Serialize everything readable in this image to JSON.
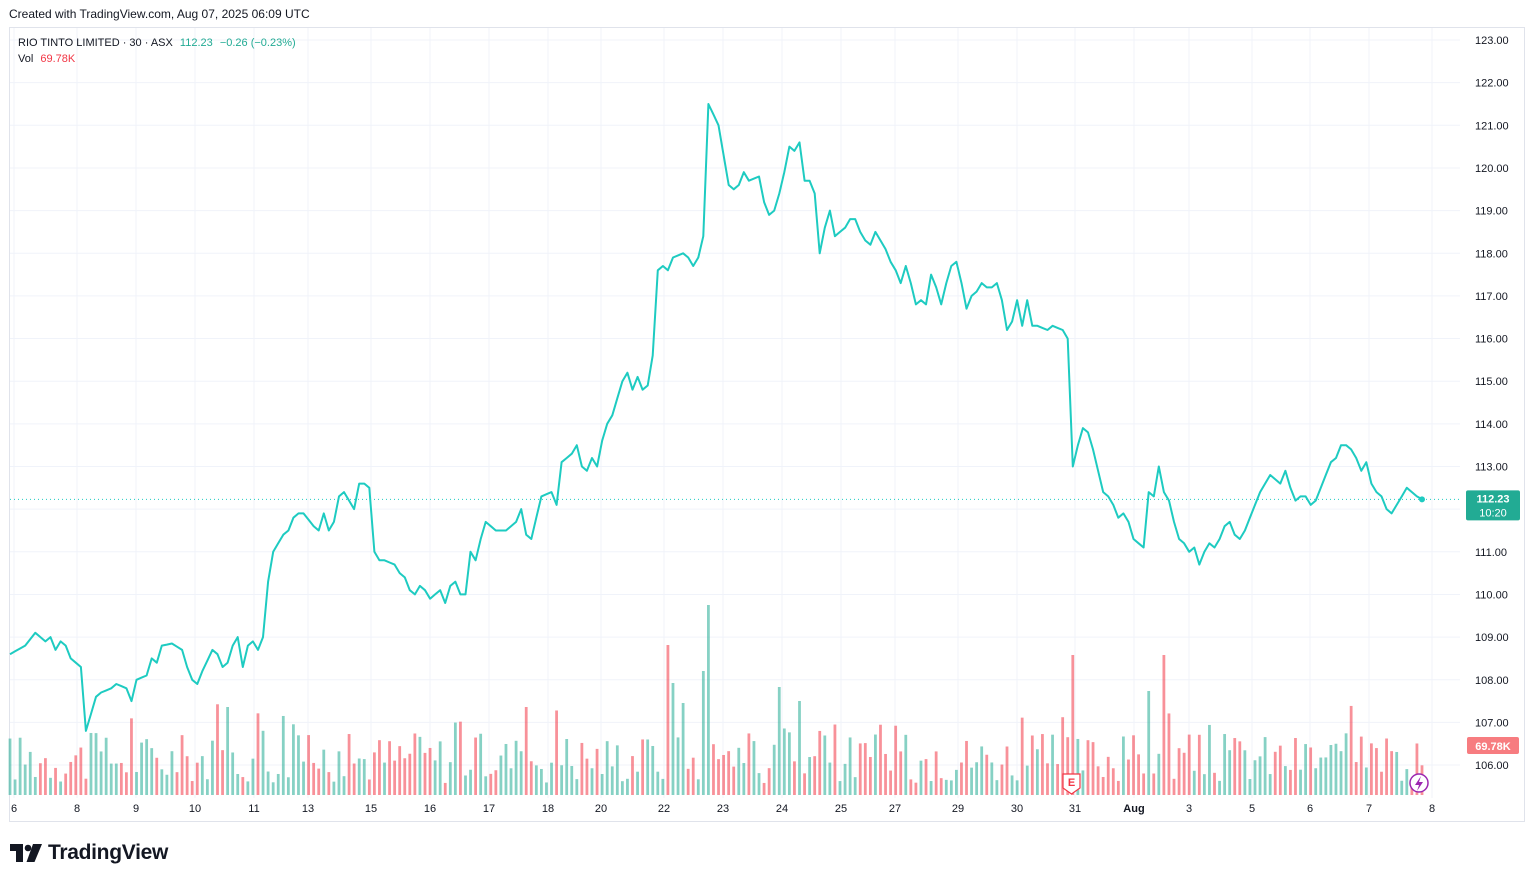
{
  "header": {
    "created_text": "Created with TradingView.com, Aug 07, 2025 06:09 UTC"
  },
  "legend": {
    "symbol": "RIO TINTO LIMITED · 30 · ASX",
    "price": "112.23",
    "change": "−0.26 (−0.23%)",
    "vol_label": "Vol",
    "vol_value": "69.78K"
  },
  "price_badge": {
    "price": "112.23",
    "time": "10:20"
  },
  "volume_badge": "69.78K",
  "earnings_marker": "E",
  "brand": "TradingView",
  "colors": {
    "line": "#1ecbc1",
    "up": "#22ab94",
    "down": "#f23645",
    "grid": "#f0f3fa"
  },
  "icons": [
    "tradingview-logo-icon",
    "lightning-icon"
  ],
  "chart_data": {
    "type": "line",
    "title": "RIO TINTO LIMITED · 30 · ASX",
    "ylim": [
      105,
      123.3
    ],
    "y_ticks": [
      "106.00",
      "107.00",
      "108.00",
      "109.00",
      "110.00",
      "111.00",
      "112.00",
      "113.00",
      "114.00",
      "115.00",
      "116.00",
      "117.00",
      "118.00",
      "119.00",
      "120.00",
      "121.00",
      "122.00",
      "123.00"
    ],
    "x_labels": [
      "6",
      "8",
      "9",
      "10",
      "11",
      "13",
      "15",
      "16",
      "17",
      "18",
      "20",
      "22",
      "23",
      "24",
      "25",
      "27",
      "29",
      "30",
      "31",
      "Aug",
      "3",
      "5",
      "6",
      "7",
      "8"
    ],
    "bold_x_labels": [
      "Aug"
    ],
    "last_price": 112.23,
    "price_anchors": [
      [
        0,
        108.6
      ],
      [
        3,
        108.8
      ],
      [
        5,
        109.1
      ],
      [
        7,
        108.9
      ],
      [
        8,
        109.0
      ],
      [
        9,
        108.7
      ],
      [
        10,
        108.9
      ],
      [
        11,
        108.8
      ],
      [
        12,
        108.5
      ],
      [
        13,
        108.4
      ],
      [
        14,
        108.3
      ],
      [
        15,
        106.8
      ],
      [
        16,
        107.2
      ],
      [
        17,
        107.6
      ],
      [
        18,
        107.7
      ],
      [
        20,
        107.8
      ],
      [
        21,
        107.9
      ],
      [
        23,
        107.8
      ],
      [
        24,
        107.5
      ],
      [
        25,
        108.0
      ],
      [
        27,
        108.1
      ],
      [
        28,
        108.5
      ],
      [
        29,
        108.4
      ],
      [
        30,
        108.8
      ],
      [
        32,
        108.85
      ],
      [
        34,
        108.7
      ],
      [
        35,
        108.3
      ],
      [
        36,
        108.0
      ],
      [
        37,
        107.9
      ],
      [
        38,
        108.2
      ],
      [
        40,
        108.7
      ],
      [
        41,
        108.6
      ],
      [
        42,
        108.3
      ],
      [
        43,
        108.4
      ],
      [
        44,
        108.8
      ],
      [
        45,
        109.0
      ],
      [
        46,
        108.3
      ],
      [
        47,
        108.8
      ],
      [
        48,
        108.9
      ],
      [
        49,
        108.7
      ],
      [
        50,
        109.0
      ],
      [
        51,
        110.3
      ],
      [
        52,
        111.0
      ],
      [
        53,
        111.2
      ],
      [
        54,
        111.4
      ],
      [
        55,
        111.5
      ],
      [
        56,
        111.8
      ],
      [
        57,
        111.9
      ],
      [
        58,
        111.9
      ],
      [
        60,
        111.6
      ],
      [
        61,
        111.5
      ],
      [
        62,
        111.9
      ],
      [
        63,
        111.5
      ],
      [
        64,
        111.7
      ],
      [
        65,
        112.3
      ],
      [
        66,
        112.4
      ],
      [
        67,
        112.2
      ],
      [
        68,
        112.0
      ],
      [
        69,
        112.6
      ],
      [
        70,
        112.6
      ],
      [
        71,
        112.5
      ],
      [
        72,
        111.0
      ],
      [
        73,
        110.8
      ],
      [
        74,
        110.8
      ],
      [
        76,
        110.7
      ],
      [
        77,
        110.5
      ],
      [
        78,
        110.4
      ],
      [
        79,
        110.1
      ],
      [
        80,
        110.0
      ],
      [
        81,
        110.2
      ],
      [
        82,
        110.1
      ],
      [
        83,
        109.9
      ],
      [
        84,
        110.0
      ],
      [
        85,
        110.1
      ],
      [
        86,
        109.8
      ],
      [
        87,
        110.2
      ],
      [
        88,
        110.3
      ],
      [
        89,
        110.0
      ],
      [
        90,
        110.0
      ],
      [
        91,
        111.0
      ],
      [
        92,
        110.8
      ],
      [
        93,
        111.3
      ],
      [
        94,
        111.7
      ],
      [
        95,
        111.6
      ],
      [
        96,
        111.5
      ],
      [
        98,
        111.5
      ],
      [
        99,
        111.6
      ],
      [
        100,
        111.7
      ],
      [
        101,
        112.0
      ],
      [
        102,
        111.4
      ],
      [
        103,
        111.3
      ],
      [
        104,
        111.8
      ],
      [
        105,
        112.3
      ],
      [
        107,
        112.4
      ],
      [
        108,
        112.1
      ],
      [
        109,
        113.1
      ],
      [
        110,
        113.2
      ],
      [
        111,
        113.3
      ],
      [
        112,
        113.5
      ],
      [
        113,
        113.0
      ],
      [
        114,
        112.9
      ],
      [
        115,
        113.2
      ],
      [
        116,
        113.0
      ],
      [
        117,
        113.6
      ],
      [
        118,
        114.0
      ],
      [
        119,
        114.2
      ],
      [
        120,
        114.6
      ],
      [
        121,
        115.0
      ],
      [
        122,
        115.2
      ],
      [
        123,
        114.8
      ],
      [
        124,
        115.1
      ],
      [
        125,
        114.8
      ],
      [
        126,
        114.9
      ],
      [
        127,
        115.6
      ],
      [
        128,
        117.6
      ],
      [
        129,
        117.7
      ],
      [
        130,
        117.6
      ],
      [
        131,
        117.9
      ],
      [
        133,
        118.0
      ],
      [
        134,
        117.9
      ],
      [
        135,
        117.7
      ],
      [
        136,
        117.9
      ],
      [
        137,
        118.4
      ],
      [
        138,
        121.5
      ],
      [
        140,
        121.0
      ],
      [
        141,
        120.3
      ],
      [
        142,
        119.6
      ],
      [
        143,
        119.5
      ],
      [
        144,
        119.6
      ],
      [
        145,
        119.9
      ],
      [
        146,
        119.7
      ],
      [
        148,
        119.8
      ],
      [
        149,
        119.2
      ],
      [
        150,
        118.9
      ],
      [
        151,
        119.0
      ],
      [
        152,
        119.4
      ],
      [
        153,
        119.9
      ],
      [
        154,
        120.5
      ],
      [
        155,
        120.4
      ],
      [
        156,
        120.6
      ],
      [
        157,
        119.7
      ],
      [
        158,
        119.7
      ],
      [
        159,
        119.4
      ],
      [
        160,
        118.0
      ],
      [
        161,
        118.6
      ],
      [
        162,
        119.0
      ],
      [
        163,
        118.4
      ],
      [
        165,
        118.6
      ],
      [
        166,
        118.8
      ],
      [
        167,
        118.8
      ],
      [
        168,
        118.5
      ],
      [
        169,
        118.3
      ],
      [
        170,
        118.2
      ],
      [
        171,
        118.5
      ],
      [
        172,
        118.3
      ],
      [
        173,
        118.1
      ],
      [
        174,
        117.8
      ],
      [
        175,
        117.6
      ],
      [
        176,
        117.3
      ],
      [
        177,
        117.7
      ],
      [
        178,
        117.3
      ],
      [
        179,
        116.8
      ],
      [
        180,
        116.9
      ],
      [
        181,
        116.8
      ],
      [
        182,
        117.5
      ],
      [
        183,
        117.2
      ],
      [
        184,
        116.8
      ],
      [
        185,
        117.3
      ],
      [
        186,
        117.7
      ],
      [
        187,
        117.8
      ],
      [
        188,
        117.3
      ],
      [
        189,
        116.7
      ],
      [
        190,
        117.0
      ],
      [
        191,
        117.1
      ],
      [
        192,
        117.3
      ],
      [
        193,
        117.2
      ],
      [
        194,
        117.2
      ],
      [
        195,
        117.3
      ],
      [
        196,
        116.9
      ],
      [
        197,
        116.2
      ],
      [
        198,
        116.4
      ],
      [
        199,
        116.9
      ],
      [
        200,
        116.3
      ],
      [
        201,
        116.9
      ],
      [
        202,
        116.3
      ],
      [
        203,
        116.3
      ],
      [
        205,
        116.2
      ],
      [
        206,
        116.3
      ],
      [
        208,
        116.2
      ],
      [
        209,
        116.0
      ],
      [
        210,
        113.0
      ],
      [
        211,
        113.5
      ],
      [
        212,
        113.9
      ],
      [
        213,
        113.8
      ],
      [
        214,
        113.4
      ],
      [
        215,
        112.9
      ],
      [
        216,
        112.4
      ],
      [
        217,
        112.3
      ],
      [
        218,
        112.1
      ],
      [
        219,
        111.8
      ],
      [
        220,
        111.9
      ],
      [
        221,
        111.7
      ],
      [
        222,
        111.3
      ],
      [
        224,
        111.1
      ],
      [
        225,
        112.4
      ],
      [
        226,
        112.3
      ],
      [
        227,
        113.0
      ],
      [
        228,
        112.4
      ],
      [
        229,
        112.2
      ],
      [
        230,
        111.7
      ],
      [
        231,
        111.3
      ],
      [
        232,
        111.2
      ],
      [
        233,
        111.0
      ],
      [
        234,
        111.1
      ],
      [
        235,
        110.7
      ],
      [
        236,
        111.0
      ],
      [
        237,
        111.2
      ],
      [
        238,
        111.1
      ],
      [
        239,
        111.3
      ],
      [
        240,
        111.6
      ],
      [
        241,
        111.7
      ],
      [
        242,
        111.4
      ],
      [
        243,
        111.3
      ],
      [
        244,
        111.5
      ],
      [
        245,
        111.8
      ],
      [
        246,
        112.1
      ],
      [
        247,
        112.4
      ],
      [
        248,
        112.6
      ],
      [
        249,
        112.8
      ],
      [
        250,
        112.7
      ],
      [
        251,
        112.6
      ],
      [
        252,
        112.9
      ],
      [
        253,
        112.5
      ],
      [
        254,
        112.2
      ],
      [
        255,
        112.3
      ],
      [
        256,
        112.3
      ],
      [
        257,
        112.1
      ],
      [
        258,
        112.2
      ],
      [
        259,
        112.5
      ],
      [
        260,
        112.8
      ],
      [
        261,
        113.1
      ],
      [
        262,
        113.2
      ],
      [
        263,
        113.5
      ],
      [
        264,
        113.5
      ],
      [
        265,
        113.4
      ],
      [
        266,
        113.2
      ],
      [
        267,
        112.9
      ],
      [
        268,
        113.1
      ],
      [
        269,
        112.6
      ],
      [
        270,
        112.4
      ],
      [
        271,
        112.3
      ],
      [
        272,
        112.0
      ],
      [
        273,
        111.9
      ],
      [
        274,
        112.1
      ],
      [
        275,
        112.3
      ],
      [
        276,
        112.5
      ],
      [
        277,
        112.4
      ],
      [
        278,
        112.3
      ],
      [
        279,
        112.23
      ]
    ],
    "price_points": 280,
    "volume_bars": 280
  }
}
